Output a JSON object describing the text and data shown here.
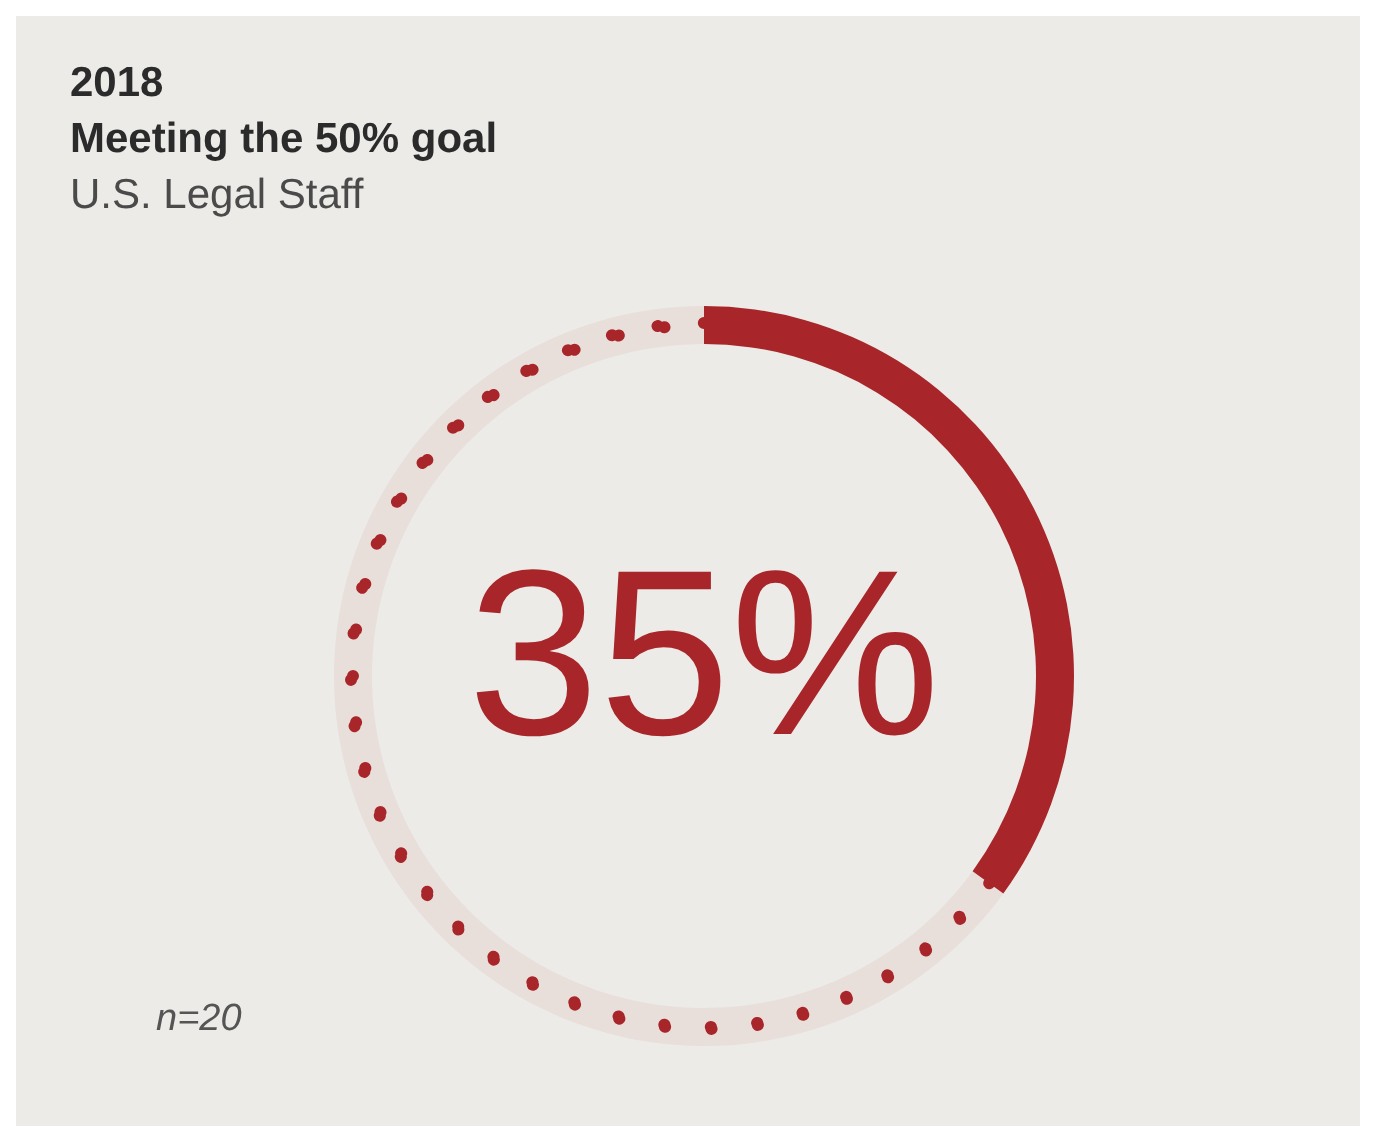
{
  "chart_data": {
    "type": "donut",
    "title": "2018\nMeeting the 50% goal",
    "subtitle": "U.S. Legal Staff",
    "categories": [
      null,
      null
    ],
    "values": [
      35,
      65
    ],
    "colors": [
      "#a8262a",
      "#a8262a"
    ],
    "value_labels": [
      "35%",
      null
    ],
    "annotations": [
      "n=20"
    ]
  }
}
